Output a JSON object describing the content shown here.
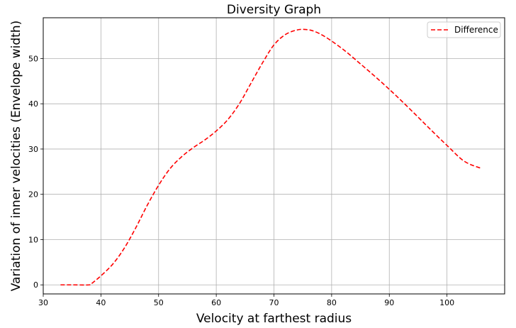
{
  "chart_data": {
    "type": "line",
    "title": "Diversity Graph",
    "xlabel": "Velocity at farthest radius",
    "ylabel": "Variation of inner velocities (Envelope width)",
    "xlim": [
      30,
      110
    ],
    "ylim": [
      -2,
      59
    ],
    "xticks": [
      30,
      40,
      50,
      60,
      70,
      80,
      90,
      100
    ],
    "yticks": [
      0,
      10,
      20,
      30,
      40,
      50
    ],
    "grid": true,
    "legend_position": "top-right",
    "series": [
      {
        "name": "Difference",
        "color": "#ff0000",
        "line_style": "dashed",
        "x": [
          33,
          35,
          38,
          38.5,
          40,
          42,
          44,
          46,
          48,
          50,
          52,
          54,
          56,
          58,
          60,
          62,
          64,
          66,
          68,
          70,
          72,
          74,
          75.5,
          77,
          79,
          82,
          85,
          88,
          91,
          94,
          97,
          100,
          103,
          106
        ],
        "y": [
          0,
          0,
          0,
          0.4,
          2,
          4.5,
          8,
          12.5,
          17.5,
          22,
          25.7,
          28.3,
          30.3,
          32,
          34,
          36.5,
          40,
          44.5,
          49,
          53,
          55.3,
          56.3,
          56.4,
          56,
          54.7,
          52,
          48.8,
          45.5,
          42,
          38.3,
          34.5,
          30.8,
          27.3,
          25.7
        ]
      }
    ]
  }
}
